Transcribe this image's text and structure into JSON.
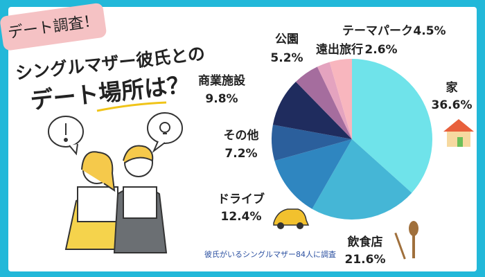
{
  "header": {
    "badge": "デート調査！",
    "title_line1": "シングルマザー彼氏との",
    "title_line2": "デート場所は？"
  },
  "chart_data": {
    "type": "pie",
    "categories": [
      "家",
      "飲食店",
      "ドライブ",
      "その他",
      "商業施設",
      "公園",
      "遠出旅行",
      "テーマパーク"
    ],
    "values": [
      36.6,
      21.6,
      12.4,
      7.2,
      9.8,
      5.2,
      2.6,
      4.5
    ],
    "value_labels": [
      "36.6%",
      "21.6%",
      "12.4%",
      "7.2%",
      "9.8%",
      "5.2%",
      "2.6%",
      "4.5%"
    ],
    "colors": [
      "#6fe3ea",
      "#45b6d6",
      "#2f86c0",
      "#2b5f9c",
      "#1f2c5e",
      "#a56d9e",
      "#e4a3bf",
      "#f8b6be"
    ],
    "note": "彼氏がいるシングルマザー84人に調査"
  }
}
